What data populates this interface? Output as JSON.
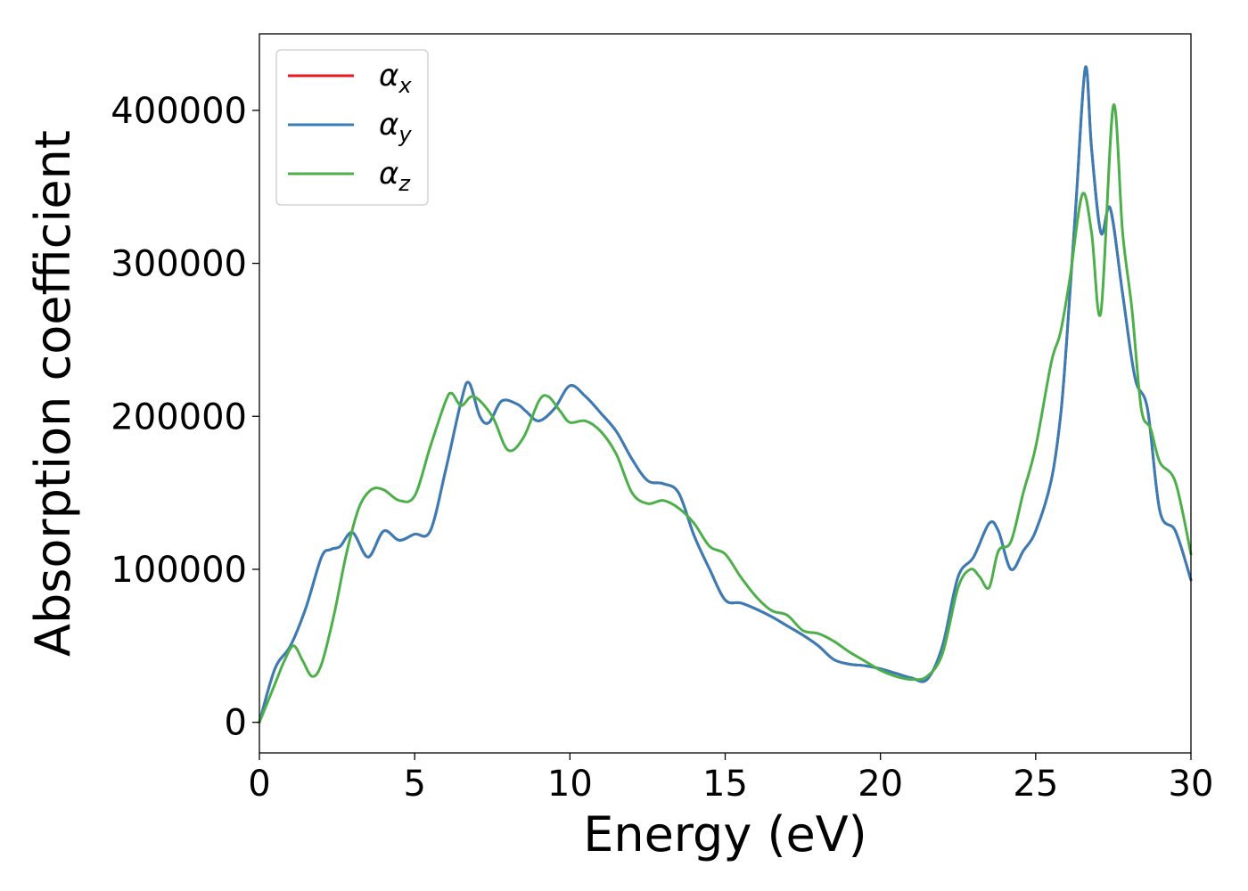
{
  "chart_data": {
    "type": "line",
    "title": "",
    "xlabel": "Energy (eV)",
    "ylabel": "Absorption coefficient",
    "xlim": [
      0,
      30
    ],
    "ylim": [
      -20000,
      450000
    ],
    "xticks": [
      0,
      5,
      10,
      15,
      20,
      25,
      30
    ],
    "xtick_labels": [
      "0",
      "5",
      "10",
      "15",
      "20",
      "25",
      "30"
    ],
    "yticks": [
      0,
      100000,
      200000,
      300000,
      400000
    ],
    "ytick_labels": [
      "0",
      "100000",
      "200000",
      "300000",
      "400000"
    ],
    "grid": false,
    "legend_position": "top-left",
    "series": [
      {
        "name": "α",
        "subscript": "x",
        "color": "#e41a1c",
        "x": [
          0,
          0.5,
          1,
          1.5,
          2,
          2.3,
          2.6,
          3,
          3.5,
          4,
          4.5,
          5,
          5.5,
          6,
          6.5,
          6.75,
          7.1,
          7.4,
          7.8,
          8.3,
          8.6,
          9,
          9.5,
          10,
          10.5,
          11,
          11.5,
          12,
          12.5,
          13,
          13.5,
          14,
          14.5,
          15,
          15.5,
          16,
          16.5,
          17,
          17.5,
          18,
          18.5,
          19,
          19.5,
          20,
          20.5,
          21,
          21.5,
          22,
          22.5,
          23,
          23.5,
          23.8,
          24.2,
          24.6,
          25,
          25.5,
          25.8,
          26,
          26.3,
          26.6,
          26.8,
          27.1,
          27.4,
          27.8,
          28.2,
          28.6,
          29,
          29.5,
          30
        ],
        "values": [
          0,
          35000,
          50000,
          75000,
          108000,
          113000,
          115000,
          124000,
          108000,
          125000,
          119000,
          123000,
          125000,
          165000,
          210000,
          222000,
          200000,
          196000,
          210000,
          208000,
          203000,
          197000,
          205000,
          220000,
          213000,
          202000,
          190000,
          172000,
          158000,
          156000,
          150000,
          122000,
          100000,
          80000,
          78000,
          74000,
          69000,
          63000,
          57000,
          50000,
          41000,
          38000,
          37000,
          35000,
          32000,
          29000,
          28000,
          50000,
          95000,
          108000,
          130000,
          125000,
          100000,
          112000,
          125000,
          158000,
          200000,
          250000,
          340000,
          428000,
          375000,
          320000,
          336000,
          280000,
          225000,
          205000,
          138000,
          125000,
          93000
        ]
      },
      {
        "name": "α",
        "subscript": "y",
        "color": "#377eb8",
        "x": [
          0,
          0.5,
          1,
          1.5,
          2,
          2.3,
          2.6,
          3,
          3.5,
          4,
          4.5,
          5,
          5.5,
          6,
          6.5,
          6.75,
          7.1,
          7.4,
          7.8,
          8.3,
          8.6,
          9,
          9.5,
          10,
          10.5,
          11,
          11.5,
          12,
          12.5,
          13,
          13.5,
          14,
          14.5,
          15,
          15.5,
          16,
          16.5,
          17,
          17.5,
          18,
          18.5,
          19,
          19.5,
          20,
          20.5,
          21,
          21.5,
          22,
          22.5,
          23,
          23.5,
          23.8,
          24.2,
          24.6,
          25,
          25.5,
          25.8,
          26,
          26.3,
          26.6,
          26.8,
          27.1,
          27.4,
          27.8,
          28.2,
          28.6,
          29,
          29.5,
          30
        ],
        "values": [
          0,
          35000,
          50000,
          75000,
          108000,
          113000,
          115000,
          124000,
          108000,
          125000,
          119000,
          123000,
          125000,
          165000,
          210000,
          222000,
          200000,
          196000,
          210000,
          208000,
          203000,
          197000,
          205000,
          220000,
          213000,
          202000,
          190000,
          172000,
          158000,
          156000,
          150000,
          122000,
          100000,
          80000,
          78000,
          74000,
          69000,
          63000,
          57000,
          50000,
          41000,
          38000,
          37000,
          35000,
          32000,
          29000,
          28000,
          50000,
          95000,
          108000,
          130000,
          125000,
          100000,
          112000,
          125000,
          158000,
          200000,
          250000,
          340000,
          428000,
          375000,
          320000,
          336000,
          280000,
          225000,
          205000,
          138000,
          125000,
          93000
        ]
      },
      {
        "name": "α",
        "subscript": "z",
        "color": "#4daf4a",
        "x": [
          0,
          0.5,
          0.8,
          1.1,
          1.4,
          1.7,
          2,
          2.4,
          2.8,
          3.2,
          3.6,
          4,
          4.5,
          5,
          5.5,
          6,
          6.2,
          6.5,
          6.9,
          7.5,
          8,
          8.5,
          9,
          9.3,
          9.7,
          10,
          10.5,
          11,
          11.5,
          12,
          12.5,
          13,
          13.5,
          14,
          14.5,
          15,
          15.5,
          16,
          16.5,
          17,
          17.5,
          18,
          18.5,
          19,
          19.5,
          20,
          20.5,
          21,
          21.5,
          22,
          22.5,
          22.9,
          23.2,
          23.5,
          23.8,
          24.2,
          24.6,
          25,
          25.5,
          25.8,
          26.1,
          26.5,
          26.8,
          27.1,
          27.5,
          27.8,
          28.1,
          28.4,
          28.7,
          29,
          29.5,
          30
        ],
        "values": [
          0,
          25000,
          40000,
          50000,
          40000,
          30000,
          38000,
          70000,
          110000,
          140000,
          152000,
          152000,
          145000,
          148000,
          180000,
          210000,
          215000,
          207000,
          213000,
          200000,
          178000,
          186000,
          210000,
          213000,
          203000,
          196000,
          197000,
          190000,
          175000,
          150000,
          143000,
          145000,
          140000,
          130000,
          115000,
          110000,
          95000,
          82000,
          73000,
          70000,
          60000,
          58000,
          53000,
          46000,
          40000,
          34000,
          30000,
          28000,
          30000,
          45000,
          88000,
          100000,
          95000,
          88000,
          112000,
          118000,
          150000,
          180000,
          235000,
          255000,
          290000,
          345000,
          320000,
          268000,
          403000,
          320000,
          270000,
          205000,
          192000,
          170000,
          157000,
          110000
        ]
      }
    ]
  }
}
